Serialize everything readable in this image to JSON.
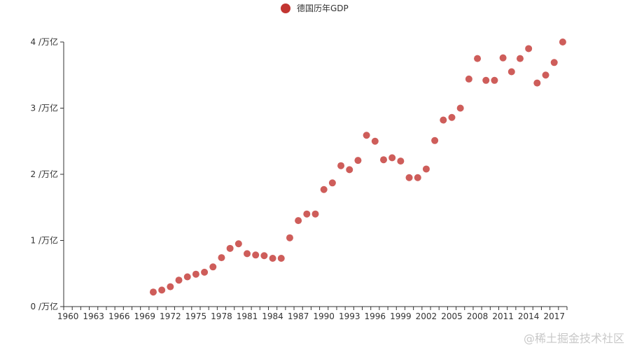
{
  "chart_data": {
    "type": "scatter",
    "title": "",
    "xlabel": "",
    "ylabel": "",
    "legend": {
      "placement": "top-center",
      "entries": [
        "德国历年GDP"
      ]
    },
    "series": [
      {
        "name": "德国历年GDP",
        "color": "#c23531",
        "x": [
          1970,
          1971,
          1972,
          1973,
          1974,
          1975,
          1976,
          1977,
          1978,
          1979,
          1980,
          1981,
          1982,
          1983,
          1984,
          1985,
          1986,
          1987,
          1988,
          1989,
          1990,
          1991,
          1992,
          1993,
          1994,
          1995,
          1996,
          1997,
          1998,
          1999,
          2000,
          2001,
          2002,
          2003,
          2004,
          2005,
          2006,
          2007,
          2008,
          2009,
          2010,
          2011,
          2012,
          2013,
          2014,
          2015,
          2016,
          2017,
          2018
        ],
        "y": [
          0.22,
          0.25,
          0.3,
          0.4,
          0.45,
          0.49,
          0.52,
          0.6,
          0.74,
          0.88,
          0.95,
          0.8,
          0.78,
          0.77,
          0.73,
          0.73,
          1.04,
          1.3,
          1.4,
          1.4,
          1.77,
          1.87,
          2.13,
          2.07,
          2.21,
          2.59,
          2.5,
          2.22,
          2.25,
          2.2,
          1.95,
          1.95,
          2.08,
          2.51,
          2.82,
          2.86,
          3.0,
          3.44,
          3.75,
          3.42,
          3.42,
          3.76,
          3.55,
          3.75,
          3.9,
          3.38,
          3.5,
          3.69,
          4.0
        ]
      }
    ],
    "x_categories": [
      "1960",
      "1961",
      "1962",
      "1963",
      "1964",
      "1965",
      "1966",
      "1967",
      "1968",
      "1969",
      "1970",
      "1971",
      "1972",
      "1973",
      "1974",
      "1975",
      "1976",
      "1977",
      "1978",
      "1979",
      "1980",
      "1981",
      "1982",
      "1983",
      "1984",
      "1985",
      "1986",
      "1987",
      "1988",
      "1989",
      "1990",
      "1991",
      "1992",
      "1993",
      "1994",
      "1995",
      "1996",
      "1997",
      "1998",
      "1999",
      "2000",
      "2001",
      "2002",
      "2003",
      "2004",
      "2005",
      "2006",
      "2007",
      "2008",
      "2009",
      "2010",
      "2011",
      "2012",
      "2013",
      "2014",
      "2015",
      "2016",
      "2017",
      "2018"
    ],
    "x_tick_labels": [
      "1960",
      "1963",
      "1966",
      "1969",
      "1972",
      "1975",
      "1978",
      "1981",
      "1984",
      "1987",
      "1990",
      "1993",
      "1996",
      "1999",
      "2002",
      "2005",
      "2008",
      "2011",
      "2014",
      "2017"
    ],
    "y_ticks": [
      0,
      1,
      2,
      3,
      4
    ],
    "y_tick_labels": [
      "0 /万亿",
      "1 /万亿",
      "2 /万亿",
      "3 /万亿",
      "4 /万亿"
    ],
    "ylim": [
      0,
      4
    ],
    "grid": false
  },
  "watermark": "@稀土掘金技术社区",
  "colors": {
    "axis": "#333333",
    "point": "#c23531"
  }
}
